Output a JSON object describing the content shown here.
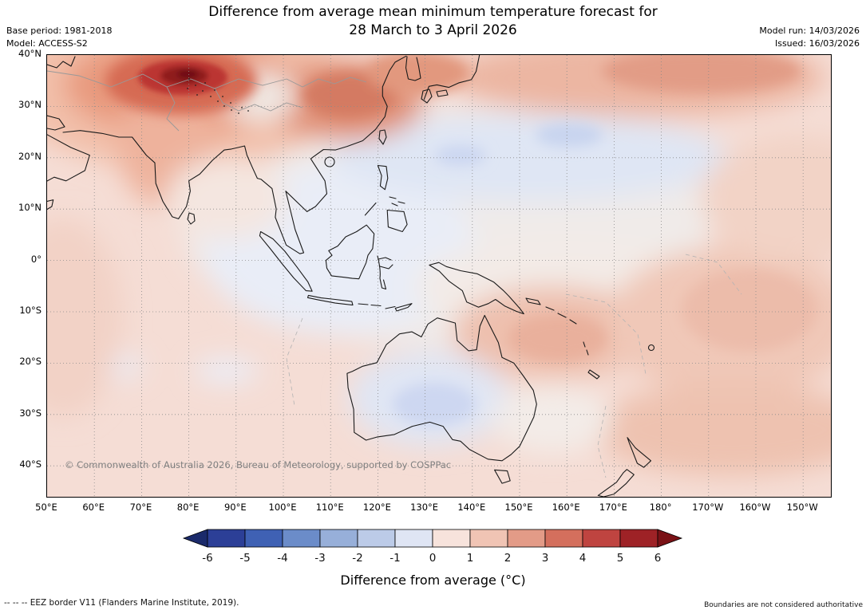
{
  "header": {
    "title_line1": "Difference from average mean minimum temperature forecast for",
    "title_line2": "28 March to 3 April 2026",
    "base_period": "Base period: 1981-2018",
    "model": "Model: ACCESS-S2",
    "model_run": "Model run: 14/03/2026",
    "issued": "Issued: 16/03/2026"
  },
  "map": {
    "x_ticks": [
      "50°E",
      "60°E",
      "70°E",
      "80°E",
      "90°E",
      "100°E",
      "110°E",
      "120°E",
      "130°E",
      "140°E",
      "150°E",
      "160°E",
      "170°E",
      "180°",
      "170°W",
      "160°W",
      "150°W"
    ],
    "y_ticks": [
      "40°N",
      "30°N",
      "20°N",
      "10°N",
      "0°",
      "10°S",
      "20°S",
      "30°S",
      "40°S"
    ],
    "copyright": "© Commonwealth of Australia 2026, Bureau of Meteorology, supported by COSPPac"
  },
  "colorbar": {
    "title": "Difference from average (°C)",
    "labels": [
      "-6",
      "-5",
      "-4",
      "-3",
      "-2",
      "-1",
      "0",
      "1",
      "2",
      "3",
      "4",
      "5",
      "6"
    ],
    "segment_colors": [
      "#2c3f97",
      "#3f61b4",
      "#6b8cc9",
      "#97afd9",
      "#bccbe8",
      "#dfe5f4",
      "#f7e3dc",
      "#f0c4b4",
      "#e39b87",
      "#d46f5d",
      "#bf4440",
      "#9e2226"
    ],
    "left_arrow_color": "#1b2a6b",
    "right_arrow_color": "#7a1216"
  },
  "footer": {
    "eez_note": "--  --  --  EEZ border V11 (Flanders Marine Institute, 2019).",
    "disclaimer": "Boundaries are not considered authoritative"
  }
}
